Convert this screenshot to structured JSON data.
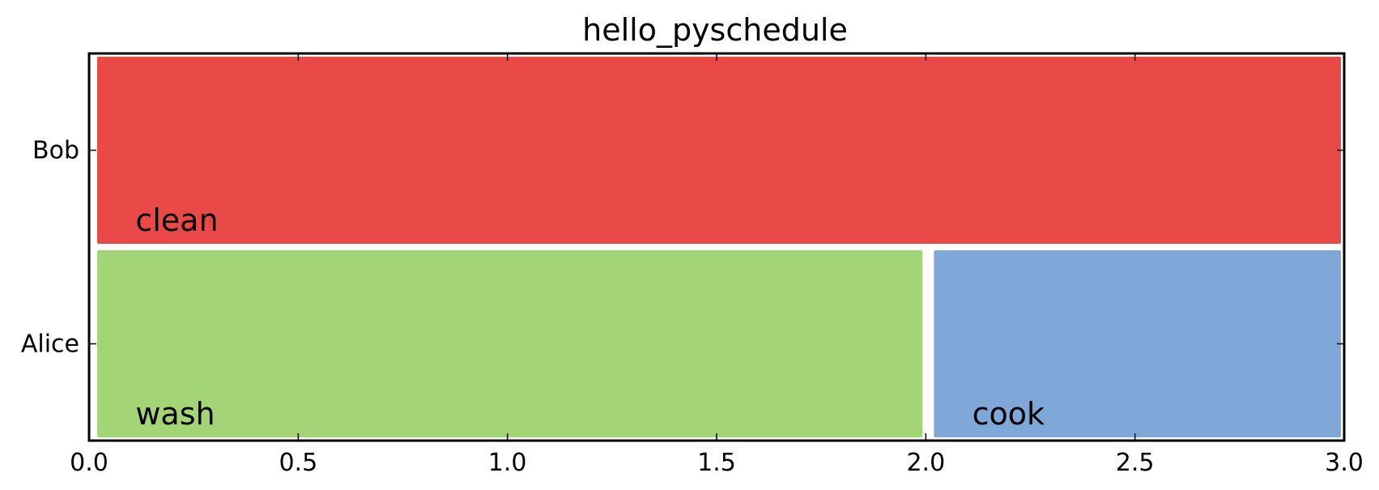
{
  "chart_data": {
    "type": "gantt",
    "title": "hello_pyschedule",
    "xlabel": "",
    "ylabel": "",
    "xlim": [
      0,
      3.0
    ],
    "x_ticks": [
      "0.0",
      "0.5",
      "1.0",
      "1.5",
      "2.0",
      "2.5",
      "3.0"
    ],
    "x_tick_values": [
      0,
      0.5,
      1.0,
      1.5,
      2.0,
      2.5,
      3.0
    ],
    "categories": [
      "Alice",
      "Bob"
    ],
    "grid": false,
    "legend": "none",
    "tasks": [
      {
        "label": "clean",
        "resource": "Bob",
        "start": 0,
        "end": 3.0,
        "color": "#EA4A47"
      },
      {
        "label": "wash",
        "resource": "Alice",
        "start": 0,
        "end": 2.0,
        "color": "#A3D475"
      },
      {
        "label": "cook",
        "resource": "Alice",
        "start": 2.0,
        "end": 3.0,
        "color": "#7FA7D8"
      }
    ]
  }
}
